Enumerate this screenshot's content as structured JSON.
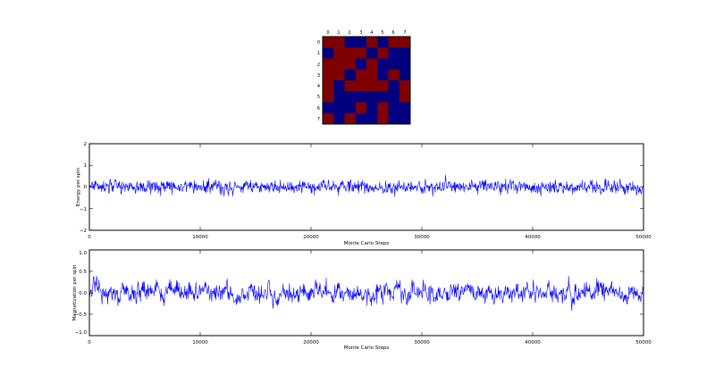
{
  "chart_data": [
    {
      "type": "heatmap",
      "x_ticks": [
        "0",
        "1",
        "2",
        "3",
        "4",
        "5",
        "6",
        "7"
      ],
      "y_ticks": [
        "0",
        "1",
        "2",
        "3",
        "4",
        "5",
        "6",
        "7"
      ],
      "colors": {
        "up": "#7f0000",
        "down": "#00007f"
      },
      "grid": [
        [
          1,
          1,
          0,
          0,
          1,
          0,
          1,
          1
        ],
        [
          0,
          1,
          1,
          1,
          0,
          1,
          0,
          0
        ],
        [
          1,
          1,
          1,
          0,
          1,
          0,
          0,
          0
        ],
        [
          1,
          1,
          0,
          1,
          1,
          0,
          1,
          0
        ],
        [
          1,
          0,
          1,
          1,
          1,
          1,
          0,
          1
        ],
        [
          1,
          0,
          0,
          0,
          0,
          0,
          0,
          1
        ],
        [
          0,
          0,
          0,
          1,
          0,
          1,
          0,
          0
        ],
        [
          1,
          0,
          1,
          0,
          0,
          1,
          0,
          0
        ]
      ]
    },
    {
      "type": "line",
      "xlabel": "Monte Carlo Steps",
      "ylabel": "Energy per spin",
      "xlim": [
        0,
        50000
      ],
      "ylim": [
        -2,
        2
      ],
      "x_ticks": [
        "0",
        "10000",
        "20000",
        "30000",
        "40000",
        "50000"
      ],
      "y_ticks": [
        "2",
        "1",
        "0",
        "−1",
        "−2"
      ],
      "color": "#0000ff",
      "grid": false,
      "series_summary": {
        "mean": 0.0,
        "typical_amplitude": 0.25,
        "samples": 50000
      }
    },
    {
      "type": "line",
      "xlabel": "Monte Carlo Steps",
      "ylabel": "Magnetization per spin",
      "xlim": [
        0,
        50000
      ],
      "ylim": [
        -1,
        1
      ],
      "x_ticks": [
        "0",
        "10000",
        "20000",
        "30000",
        "40000",
        "50000"
      ],
      "y_ticks": [
        "1.0",
        "0.5",
        "0.0",
        "−0.5",
        "−1.0"
      ],
      "color": "#0000ff",
      "grid": false,
      "series_summary": {
        "mean": 0.0,
        "typical_amplitude": 0.2,
        "samples": 50000
      }
    }
  ]
}
